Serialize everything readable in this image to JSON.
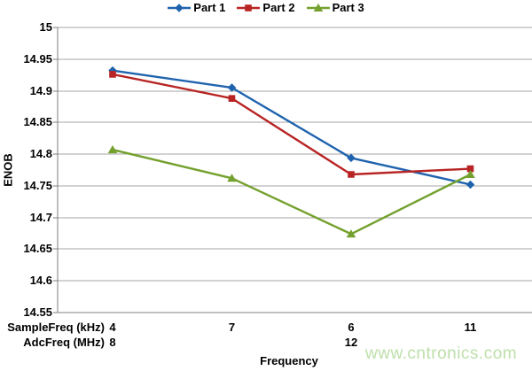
{
  "watermark": {
    "text": "www.cntronics.com",
    "color": "#BEE0AA"
  },
  "chart_data": {
    "type": "line",
    "title": "",
    "ylabel": "ENOB",
    "xlabel": "Frequency",
    "ylim": [
      14.55,
      15
    ],
    "ytick_labels": [
      "15",
      "14.95",
      "14.9",
      "14.85",
      "14.8",
      "14.75",
      "14.7",
      "14.65",
      "14.6",
      "14.55"
    ],
    "grid": true,
    "legend_position": "top",
    "x_axis_rows": [
      {
        "label": "SampleFreq (kHz)",
        "values": [
          "4",
          "7",
          "6",
          "11"
        ]
      },
      {
        "label": "AdcFreq (MHz)",
        "values": [
          "8",
          "",
          "12",
          ""
        ]
      }
    ],
    "series": [
      {
        "name": "Part 1",
        "marker": "diamond",
        "color": "#1F63AE",
        "values": [
          14.932,
          14.905,
          14.794,
          14.752
        ]
      },
      {
        "name": "Part 2",
        "marker": "square",
        "color": "#B82423",
        "values": [
          14.926,
          14.888,
          14.768,
          14.777
        ]
      },
      {
        "name": "Part 3",
        "marker": "triangle",
        "color": "#74A12E",
        "values": [
          14.807,
          14.762,
          14.674,
          14.768
        ]
      }
    ],
    "colors": {
      "gridline": "#A6A6A6",
      "axis": "#7F7F7F",
      "text": "#000000"
    }
  }
}
